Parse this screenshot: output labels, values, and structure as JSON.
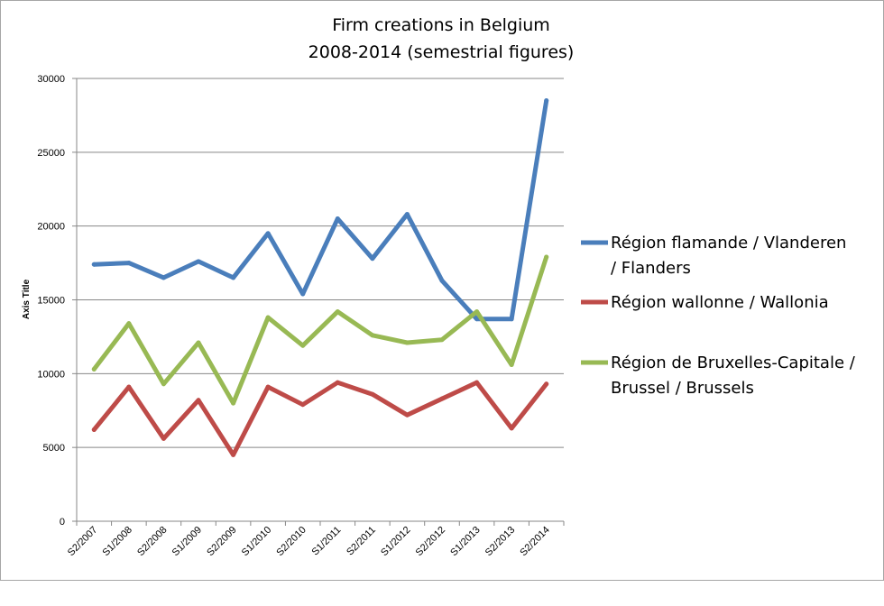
{
  "chart_data": {
    "type": "line",
    "title": [
      "Firm creations in Belgium",
      "2008-2014 (semestrial figures)"
    ],
    "xlabel": "",
    "ylabel": "Axis Title",
    "ylim": [
      0,
      30000
    ],
    "yticks": [
      0,
      5000,
      10000,
      15000,
      20000,
      25000,
      30000
    ],
    "categories": [
      "S2/2007",
      "S1/2008",
      "S2/2008",
      "S1/2009",
      "S2/2009",
      "S1/2010",
      "S2/2010",
      "S1/2011",
      "S2/2011",
      "S1/2012",
      "S2/2012",
      "S1/2013",
      "S2/2013",
      "S2/2014"
    ],
    "grid": true,
    "legend_position": "right",
    "series": [
      {
        "name_lines": [
          "Région flamande / Vlanderen",
          "/ Flanders"
        ],
        "color": "#4a7ebb",
        "values": [
          17400,
          17500,
          16500,
          17600,
          16500,
          19500,
          15400,
          20500,
          17800,
          20800,
          16300,
          13700,
          13700,
          28500
        ]
      },
      {
        "name_lines": [
          "Région wallonne / Wallonia"
        ],
        "color": "#be4b48",
        "values": [
          6200,
          9100,
          5600,
          8200,
          4500,
          9100,
          7900,
          9400,
          8600,
          7200,
          8300,
          9400,
          6300,
          9300
        ]
      },
      {
        "name_lines": [
          "Région de Bruxelles-Capitale /",
          "Brussel / Brussels"
        ],
        "color": "#98b954",
        "values": [
          10300,
          13400,
          9300,
          12100,
          8000,
          13800,
          11900,
          14200,
          12600,
          12100,
          12300,
          14200,
          10600,
          17900
        ]
      }
    ]
  }
}
